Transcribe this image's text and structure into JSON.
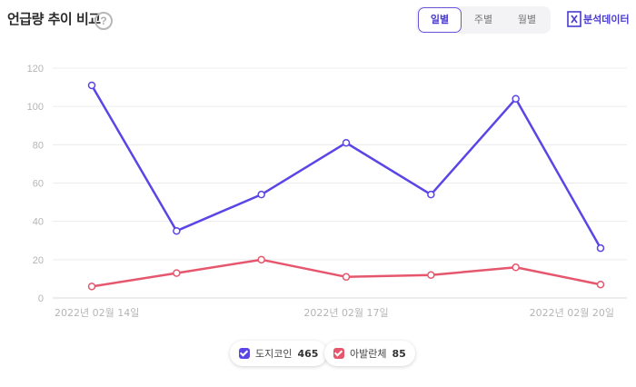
{
  "header": {
    "title": "언급량 추이 비교",
    "help_symbol": "?",
    "period_tabs": [
      {
        "label": "일별",
        "active": true
      },
      {
        "label": "주별",
        "active": false
      },
      {
        "label": "월별",
        "active": false
      }
    ],
    "export_label": "분석데이터",
    "export_icon": "excel-icon"
  },
  "chart_data": {
    "type": "line",
    "x": [
      "2022-02-14",
      "2022-02-15",
      "2022-02-16",
      "2022-02-17",
      "2022-02-18",
      "2022-02-19",
      "2022-02-20"
    ],
    "x_tick_labels": [
      "2022년 02월 14일",
      "2022년 02월 17일",
      "2022년 02월 20일"
    ],
    "y_ticks": [
      0,
      20,
      40,
      60,
      80,
      100,
      120
    ],
    "ylim": [
      0,
      120
    ],
    "grid": true,
    "legend_position": "bottom-center",
    "series": [
      {
        "name": "도지코인",
        "total": 465,
        "color": "#5a45e6",
        "values": [
          111,
          35,
          54,
          81,
          54,
          104,
          26
        ]
      },
      {
        "name": "아발란체",
        "total": 85,
        "color": "#e6576e",
        "values": [
          6,
          13,
          20,
          11,
          12,
          16,
          7
        ]
      }
    ]
  }
}
